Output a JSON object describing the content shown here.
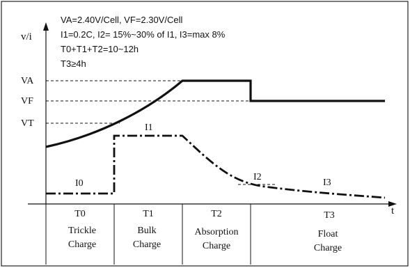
{
  "parameters": {
    "line1": "VA=2.40V/Cell, VF=2.30V/Cell",
    "line2": "I1=0.2C, I2= 15%~30% of I1, I3=max 8%",
    "line3": "T0+T1+T2=10~12h",
    "line4": "T3≥4h"
  },
  "axes": {
    "y_label": "v/i",
    "x_label": "t"
  },
  "voltage_levels": {
    "va": "VA",
    "vf": "VF",
    "vt": "VT"
  },
  "current_labels": {
    "i0": "I0",
    "i1": "I1",
    "i2": "I2",
    "i3": "I3"
  },
  "phases": [
    {
      "time": "T0",
      "line1": "Trickle",
      "line2": "Charge"
    },
    {
      "time": "T1",
      "line1": "Bulk",
      "line2": "Charge"
    },
    {
      "time": "T2",
      "line1": "Absorption",
      "line2": "Charge"
    },
    {
      "time": "T3",
      "line1": "Float",
      "line2": "Charge"
    }
  ]
}
